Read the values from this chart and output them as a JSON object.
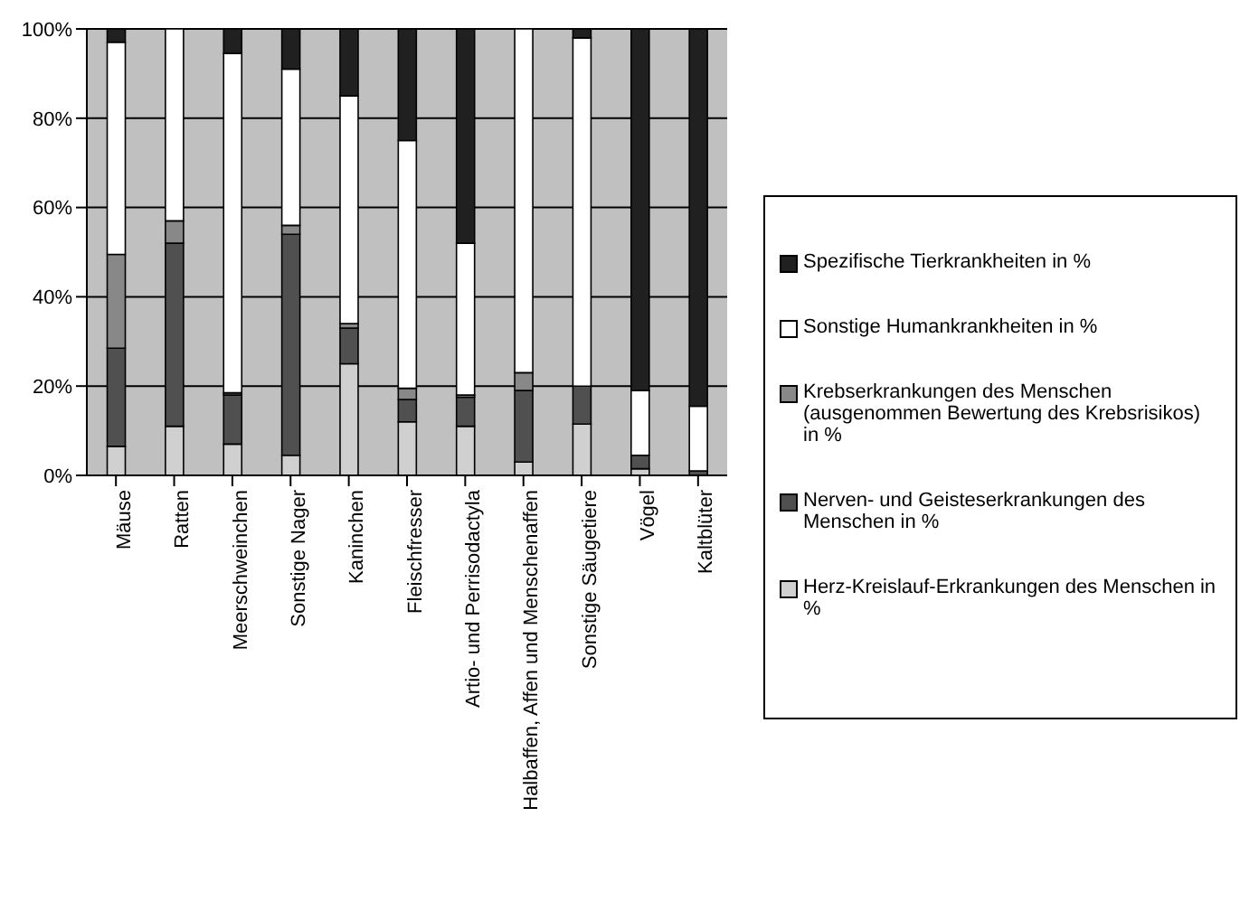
{
  "chart_data": {
    "type": "bar",
    "stacked": true,
    "categories": [
      "Mäuse",
      "Ratten",
      "Meerschweinchen",
      "Sonstige Nager",
      "Kaninchen",
      "Fleischfresser",
      "Artio- und Perrisodactyla",
      "Halbaffen, Affen und Menschenaffen",
      "Sonstige Säugetiere",
      "Vögel",
      "Kaltblüter"
    ],
    "series": [
      {
        "name": "Herz-Kreislauf-Erkrankungen des Menschen in %",
        "color": "#d0d0d0",
        "values": [
          6.5,
          11,
          7,
          4.5,
          25,
          12,
          11,
          3,
          11.5,
          1.5,
          0
        ]
      },
      {
        "name": "Nerven- und Geisteserkrankungen des Menschen in %",
        "color": "#505050",
        "values": [
          22,
          41,
          11,
          49.5,
          8,
          5,
          6.5,
          16,
          8.5,
          3,
          1
        ]
      },
      {
        "name": "Krebserkrankungen des Menschen (ausgenommen Bewertung des Krebsrisikos)  in %",
        "color": "#888888",
        "values": [
          21,
          5,
          0.5,
          2,
          1,
          2.5,
          0.5,
          4,
          0,
          0,
          0
        ]
      },
      {
        "name": "Sonstige Humankrankheiten in %",
        "color": "#ffffff",
        "values": [
          47.5,
          43,
          76,
          35,
          51,
          55.5,
          34,
          77,
          78,
          14.5,
          14.5
        ]
      },
      {
        "name": "Spezifische Tierkrankheiten  in %",
        "color": "#202020",
        "values": [
          3,
          0,
          5.5,
          9,
          15,
          25,
          48,
          0,
          2,
          81,
          84.5
        ]
      }
    ],
    "ylim": [
      0,
      100
    ],
    "yticks": [
      {
        "value": 0,
        "label": "0%"
      },
      {
        "value": 20,
        "label": "20%"
      },
      {
        "value": 40,
        "label": "40%"
      },
      {
        "value": 60,
        "label": "60%"
      },
      {
        "value": 80,
        "label": "80%"
      },
      {
        "value": 100,
        "label": "100%"
      }
    ],
    "grid": "y",
    "legend": "right"
  }
}
